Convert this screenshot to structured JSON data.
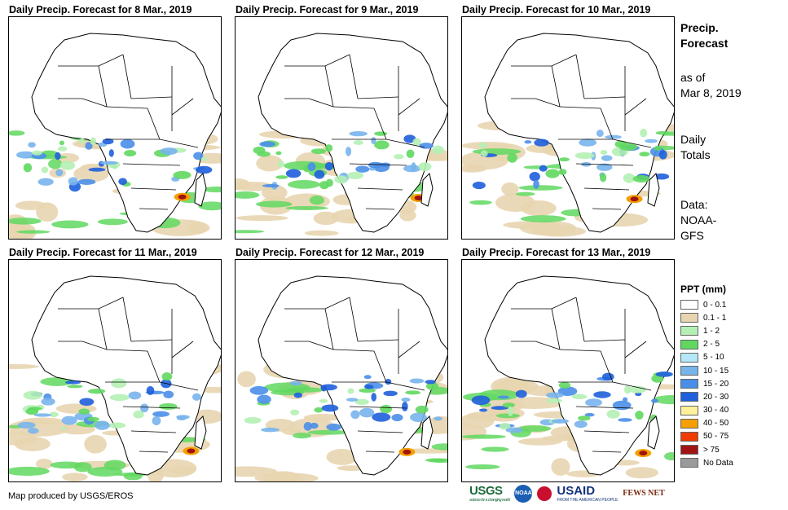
{
  "panels": [
    {
      "title": "Daily Precip. Forecast for 8 Mar., 2019"
    },
    {
      "title": "Daily Precip. Forecast for 9 Mar., 2019"
    },
    {
      "title": "Daily Precip. Forecast for 10 Mar., 2019"
    },
    {
      "title": "Daily Precip. Forecast for 11 Mar., 2019"
    },
    {
      "title": "Daily Precip. Forecast for 12 Mar., 2019"
    },
    {
      "title": "Daily Precip. Forecast for 13 Mar., 2019"
    }
  ],
  "side": {
    "heading1": "Precip.",
    "heading2": "Forecast",
    "asof1": "as of",
    "asof2": "Mar 8, 2019",
    "totals1": "Daily",
    "totals2": "Totals",
    "data1": "Data:",
    "data2": "NOAA-",
    "data3": "GFS"
  },
  "legend": {
    "title": "PPT (mm)",
    "items": [
      {
        "label": "0 - 0.1",
        "color": "#ffffff"
      },
      {
        "label": "0.1 - 1",
        "color": "#e8d5b0"
      },
      {
        "label": "1 - 2",
        "color": "#b4f0b4"
      },
      {
        "label": "2 - 5",
        "color": "#60d860"
      },
      {
        "label": "5 - 10",
        "color": "#b4e8f8"
      },
      {
        "label": "10 - 15",
        "color": "#78b4ec"
      },
      {
        "label": "15 - 20",
        "color": "#4a8ee8"
      },
      {
        "label": "20 - 30",
        "color": "#1f5fdc"
      },
      {
        "label": "30 - 40",
        "color": "#fff09a"
      },
      {
        "label": "40 - 50",
        "color": "#f5a000"
      },
      {
        "label": "50 - 75",
        "color": "#f03c00"
      },
      {
        "label": "> 75",
        "color": "#a01414"
      },
      {
        "label": "No Data",
        "color": "#9a9a9a"
      }
    ]
  },
  "credit": "Map produced by USGS/EROS",
  "logos": {
    "usgs": "USGS",
    "usgs_tag": "science for a changing world",
    "noaa": "NOAA",
    "usaid": "USAID",
    "usaid_tag": "FROM THE AMERICAN PEOPLE",
    "fews": "FEWS NET"
  }
}
